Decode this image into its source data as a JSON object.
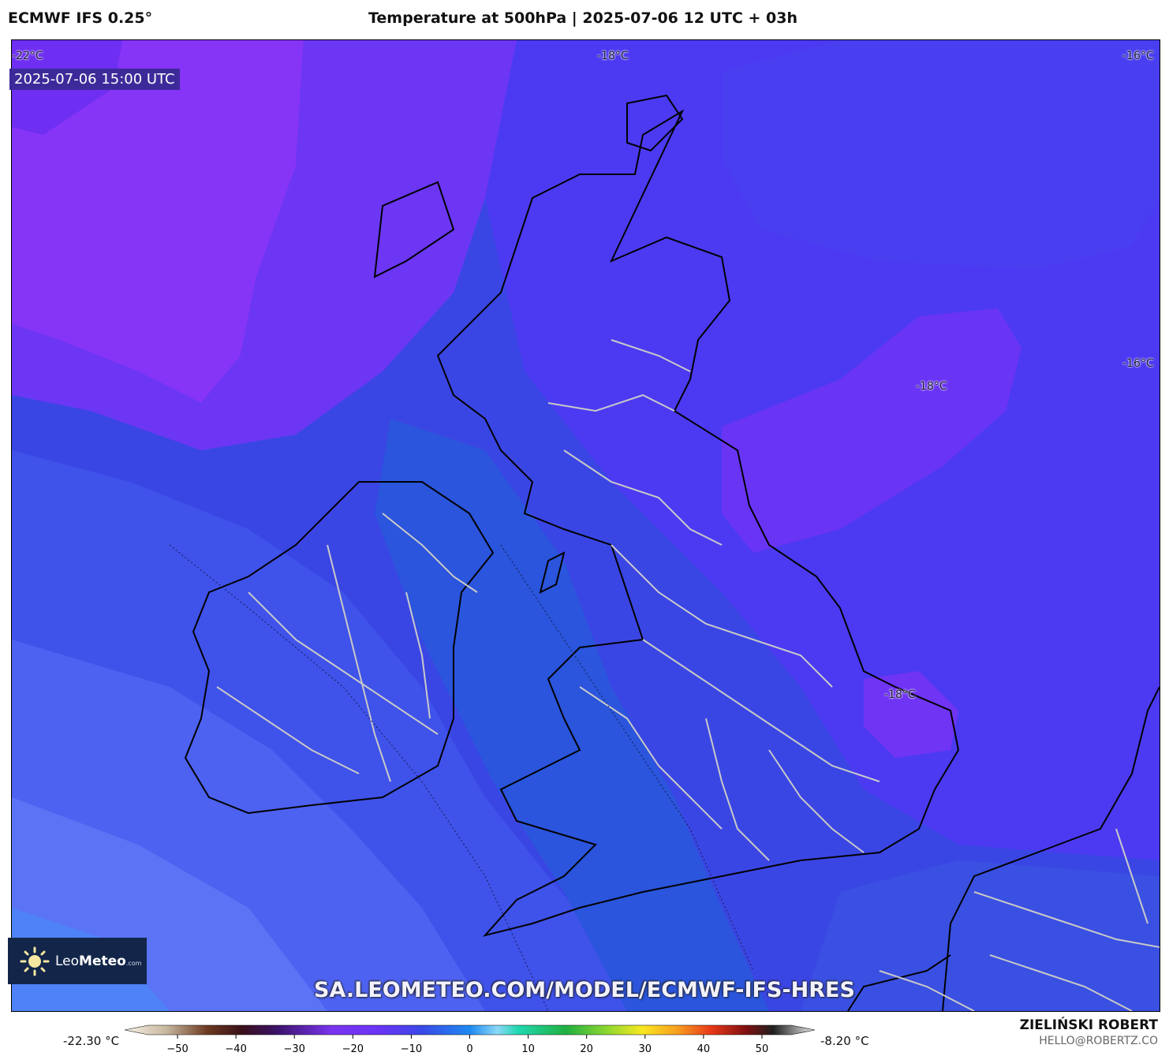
{
  "header": {
    "model": "ECMWF IFS 0.25°",
    "title": "Temperature at 500hPa | 2025-07-06 12 UTC + 03h"
  },
  "map": {
    "valid_time": "2025-07-06 15:00 UTC",
    "isotherm_labels": [
      "-22°C",
      "-18°C",
      "-16°C",
      "-16°C",
      "-18°C",
      "-18°C"
    ],
    "colors": {
      "violet": "#8634f6",
      "purple": "#6b34f5",
      "blue_violet": "#5833f0",
      "indigo": "#4a3bf0",
      "blue": "#3a48e8",
      "deep_blue": "#2850d8",
      "sw_blue": "#4d62f0",
      "light_blue": "#5b76f5",
      "coast": "#000000",
      "borders": "#c9c9c9"
    }
  },
  "logo": {
    "brand_light": "Leo",
    "brand_bold": "Meteo",
    "suffix": ".com"
  },
  "watermark": "SA.LEOMETEO.COM/MODEL/ECMWF-IFS-HRES",
  "credit": {
    "author": "ZIELIŃSKI ROBERT",
    "email": "HELLO@ROBERTZ.CO"
  },
  "colorbar": {
    "min_label": "-22.30 °C",
    "max_label": "-8.20 °C",
    "ticks": [
      "−50",
      "−40",
      "−30",
      "−20",
      "−10",
      "0",
      "10",
      "20",
      "30",
      "40",
      "50"
    ],
    "tick_values": [
      -50,
      -40,
      -30,
      -20,
      -10,
      0,
      10,
      20,
      30,
      40,
      50
    ],
    "range": [
      -55,
      55
    ]
  }
}
